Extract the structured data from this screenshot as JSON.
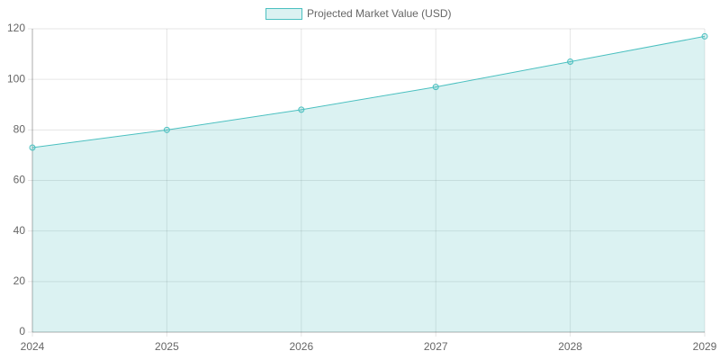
{
  "chart_data": {
    "type": "line",
    "categories": [
      "2024",
      "2025",
      "2026",
      "2027",
      "2028",
      "2029"
    ],
    "series": [
      {
        "name": "Projected Market Value (USD)",
        "color": "#4bc0c0",
        "fill": true,
        "values": [
          73,
          80,
          88,
          97,
          107,
          117
        ]
      }
    ],
    "ylim": [
      0,
      120
    ],
    "yticks": [
      0,
      20,
      40,
      60,
      80,
      100,
      120
    ],
    "grid": true,
    "legend": "top"
  }
}
